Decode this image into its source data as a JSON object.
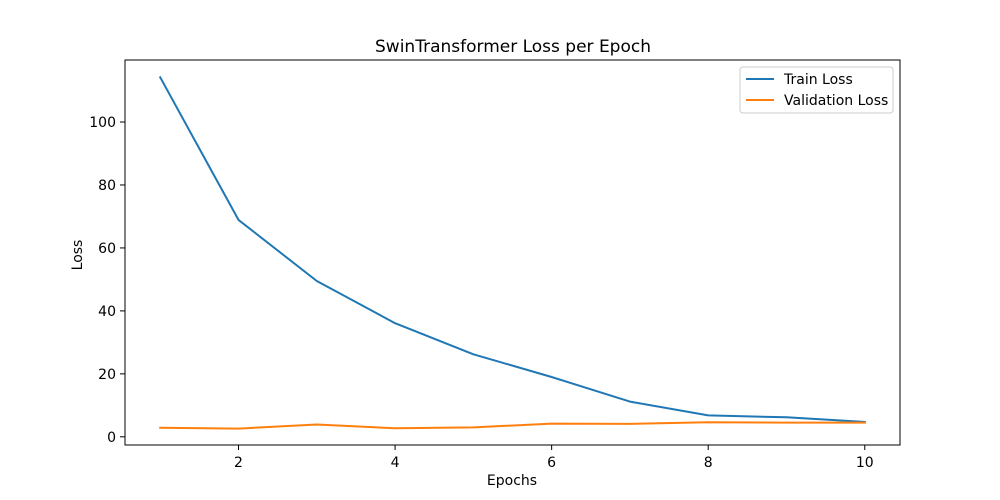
{
  "chart_data": {
    "type": "line",
    "title": "SwinTransformer Loss per Epoch",
    "xlabel": "Epochs",
    "ylabel": "Loss",
    "xlim": [
      0.55,
      10.45
    ],
    "ylim": [
      -2.6,
      119.7
    ],
    "x_ticks": [
      2,
      4,
      6,
      8,
      10
    ],
    "y_ticks": [
      0,
      20,
      40,
      60,
      80,
      100
    ],
    "grid": false,
    "legend_position": "top-right",
    "x": [
      1,
      2,
      3,
      4,
      5,
      6,
      7,
      8,
      9,
      10
    ],
    "series": [
      {
        "name": "Train Loss",
        "color": "#1f77b4",
        "values": [
          114.2,
          68.9,
          49.5,
          36.1,
          26.2,
          19.0,
          11.2,
          6.8,
          6.2,
          4.7
        ]
      },
      {
        "name": "Validation Loss",
        "color": "#ff7f0e",
        "values": [
          2.9,
          2.6,
          3.9,
          2.7,
          3.0,
          4.2,
          4.1,
          4.6,
          4.5,
          4.5
        ]
      }
    ]
  }
}
